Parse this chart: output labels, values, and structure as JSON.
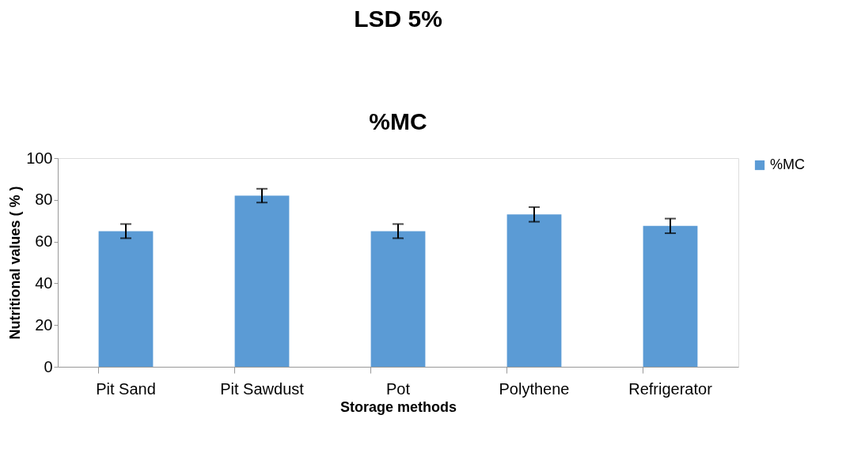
{
  "chart_data": {
    "type": "bar",
    "title": "LSD 5%",
    "subtitle": "%MC",
    "xlabel": "Storage methods",
    "ylabel": "Nutritional values ( % )",
    "categories": [
      "Pit Sand",
      "Pit Sawdust",
      "Pot",
      "Polythene",
      "Refrigerator"
    ],
    "series": [
      {
        "name": "%MC",
        "color": "#5b9bd5",
        "values": [
          65,
          82,
          65,
          73,
          67.5
        ],
        "errors": [
          3.4,
          3.3,
          3.4,
          3.5,
          3.5
        ]
      }
    ],
    "ylim": [
      0,
      100
    ],
    "yticks": [
      0,
      20,
      40,
      60,
      80,
      100
    ],
    "grid": false,
    "legend": "right"
  }
}
